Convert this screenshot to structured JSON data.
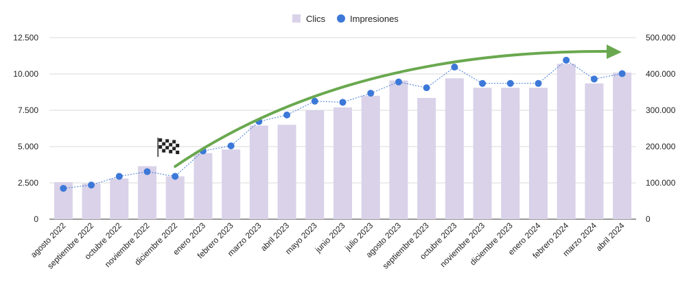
{
  "chart_data": {
    "type": "bar",
    "categories": [
      "agosto 2022",
      "septiembre 2022",
      "octubre 2022",
      "noviembre 2022",
      "diciembre 2022",
      "enero 2023",
      "febrero 2023",
      "marzo 2023",
      "abril 2023",
      "mayo 2023",
      "junio 2023",
      "julio 2023",
      "agosto 2023",
      "septiembre 2023",
      "octubre 2023",
      "noviembre 2023",
      "diciembre 2023",
      "enero 2024",
      "febrero 2024",
      "marzo 2024",
      "abril 2024"
    ],
    "series": [
      {
        "name": "Clics",
        "type": "bar",
        "axis": "left",
        "color": "#d9d2e9",
        "values": [
          2550,
          2450,
          2800,
          3650,
          2950,
          4550,
          4800,
          6450,
          6500,
          7500,
          7700,
          8500,
          9550,
          8350,
          9700,
          9050,
          9050,
          9050,
          10700,
          9350,
          10100
        ]
      },
      {
        "name": "Impresiones",
        "type": "line",
        "axis": "right",
        "color": "#3c78d8",
        "values": [
          85000,
          94000,
          118000,
          131000,
          118000,
          188000,
          202000,
          269000,
          287000,
          325000,
          322000,
          347000,
          378000,
          362000,
          419000,
          374000,
          374000,
          374000,
          438000,
          386000,
          401000
        ]
      }
    ],
    "ylim_left": [
      0,
      12500
    ],
    "ylim_right": [
      0,
      500000
    ],
    "yticks_left": [
      "0",
      "2.500",
      "5.000",
      "7.500",
      "10.000",
      "12.500"
    ],
    "yticks_right": [
      "0",
      "100.000",
      "200.000",
      "300.000",
      "400.000",
      "500.000"
    ],
    "grid": true,
    "legend": "top-center",
    "annotations": [
      {
        "kind": "flag-icon",
        "icon": "checkered-flag-icon",
        "category": "diciembre 2022"
      },
      {
        "kind": "trend-arrow",
        "color": "#6aa84f"
      }
    ]
  }
}
